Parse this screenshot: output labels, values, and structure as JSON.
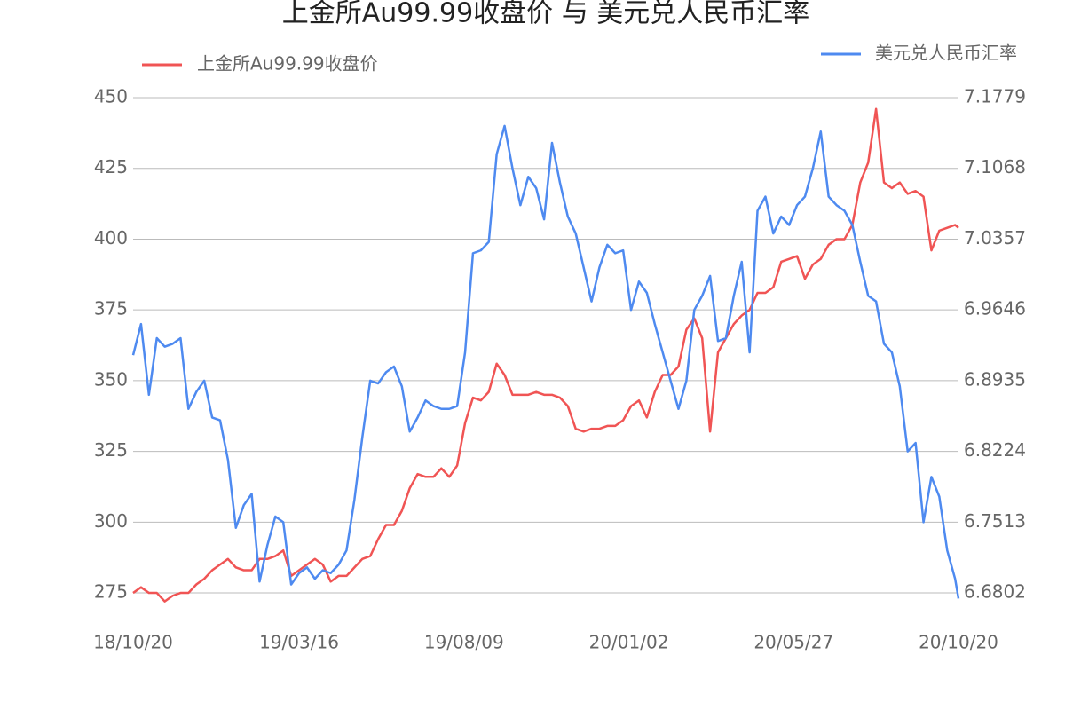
{
  "chart_data": {
    "type": "line",
    "title": "上金所Au99.99收盘价 与 美元兑人民币汇率",
    "x": [
      0,
      7,
      14,
      21,
      28,
      35,
      42,
      49,
      56,
      63,
      70,
      77,
      84,
      91,
      98,
      105,
      112,
      119,
      126,
      133,
      140,
      147,
      154,
      161,
      168,
      175,
      182,
      189,
      196,
      203,
      210,
      217,
      224,
      231,
      238,
      245,
      252,
      259,
      266,
      273,
      280,
      287,
      294,
      301,
      308,
      315,
      322,
      329,
      336,
      343,
      350,
      357,
      364,
      371,
      378,
      385,
      392,
      399,
      406,
      413,
      420,
      427,
      434,
      441,
      448,
      455,
      462,
      469,
      476,
      483,
      490,
      497,
      504,
      511,
      518,
      525,
      532,
      539,
      546,
      553,
      560,
      567,
      574,
      581,
      588,
      595,
      602,
      609,
      616,
      623,
      630,
      637,
      644,
      651,
      658,
      665,
      672,
      679,
      686,
      693,
      700,
      707,
      714,
      721,
      728,
      731
    ],
    "xlim": [
      0,
      731
    ],
    "xticks": [
      {
        "value": 0,
        "label": "18/10/20"
      },
      {
        "value": 147,
        "label": "19/03/16"
      },
      {
        "value": 293,
        "label": "19/08/09"
      },
      {
        "value": 439,
        "label": "20/01/02"
      },
      {
        "value": 585,
        "label": "20/05/27"
      },
      {
        "value": 731,
        "label": "20/10/20"
      }
    ],
    "ylim": [
      270,
      450
    ],
    "yticks": [
      275,
      300,
      325,
      350,
      375,
      400,
      425,
      450
    ],
    "y2lim": [
      6.666,
      7.1779
    ],
    "y2ticks": [
      6.6802,
      6.7513,
      6.8224,
      6.8935,
      6.9646,
      7.0357,
      7.1068,
      7.1779
    ],
    "grid": true,
    "series": [
      {
        "name": "上金所Au99.99收盘价",
        "color": "#f05454",
        "values": [
          275,
          277,
          275,
          275,
          272,
          274,
          275,
          275,
          278,
          280,
          283,
          285,
          287,
          284,
          283,
          283,
          287,
          287,
          288,
          290,
          281,
          283,
          285,
          287,
          285,
          279,
          281,
          281,
          284,
          287,
          288,
          294,
          299,
          299,
          304,
          312,
          317,
          316,
          316,
          319,
          316,
          320,
          335,
          344,
          343,
          346,
          356,
          352,
          345,
          345,
          345,
          346,
          345,
          345,
          344,
          341,
          333,
          332,
          333,
          333,
          334,
          334,
          336,
          341,
          343,
          337,
          346,
          352,
          352,
          355,
          368,
          372,
          365,
          332,
          360,
          365,
          370,
          373,
          375,
          381,
          381,
          383,
          392,
          393,
          394,
          386,
          391,
          393,
          398,
          400,
          400,
          405,
          420,
          427,
          446,
          420,
          418,
          420,
          416,
          417,
          415,
          396,
          403,
          404,
          405,
          404
        ]
      },
      {
        "name": "美元兑人民币汇率",
        "color": "#4e8af0",
        "axis": "y2",
        "values": [
          6.9191,
          6.9504,
          6.8793,
          6.9362,
          6.9276,
          6.9305,
          6.9362,
          6.8651,
          6.8822,
          6.8935,
          6.8565,
          6.8537,
          6.8139,
          6.7456,
          6.7684,
          6.7797,
          6.6916,
          6.7285,
          6.757,
          6.7513,
          6.6887,
          6.7001,
          6.7058,
          6.6944,
          6.703,
          6.7001,
          6.7086,
          6.7229,
          6.774,
          6.8366,
          6.8935,
          6.8907,
          6.902,
          6.9077,
          6.8878,
          6.8423,
          6.8565,
          6.8736,
          6.8679,
          6.8651,
          6.8651,
          6.8679,
          6.9219,
          7.0215,
          7.0244,
          7.0329,
          7.121,
          7.1495,
          7.1068,
          7.0698,
          7.0983,
          7.0869,
          7.0556,
          7.1324,
          7.0926,
          7.0584,
          7.0414,
          7.0073,
          6.9731,
          7.0073,
          7.03,
          7.0215,
          7.0244,
          6.9646,
          6.993,
          6.9817,
          6.9504,
          6.9219,
          6.8935,
          6.8651,
          6.8935,
          6.9646,
          6.9788,
          6.9987,
          6.9333,
          6.9362,
          6.9788,
          7.0129,
          6.9219,
          7.0642,
          7.0784,
          7.0414,
          7.0584,
          7.0499,
          7.0698,
          7.0784,
          7.1068,
          7.1438,
          7.0784,
          7.0698,
          7.0642,
          7.0499,
          7.0129,
          6.9788,
          6.9731,
          6.9305,
          6.9219,
          6.8878,
          6.8224,
          6.8309,
          6.7513,
          6.7968,
          6.7769,
          6.7229,
          6.6944,
          6.6745
        ]
      }
    ]
  }
}
